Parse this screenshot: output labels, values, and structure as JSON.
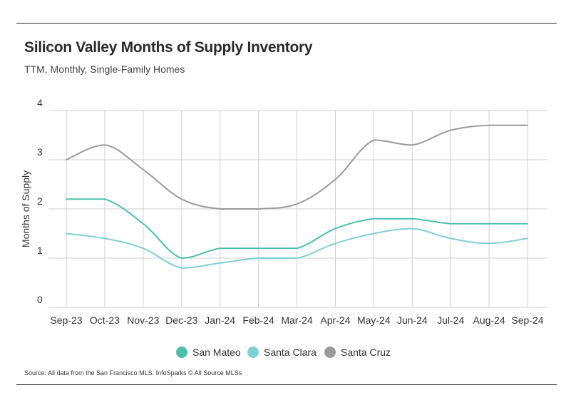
{
  "chart_data": {
    "type": "line",
    "title": "Silicon Valley Months of Supply Inventory",
    "subtitle": "TTM, Monthly, Single-Family Homes",
    "xlabel": "",
    "ylabel": "Months of Supply",
    "ylim": [
      0,
      4
    ],
    "yticks": [
      "0",
      "1",
      "2",
      "3",
      "4"
    ],
    "grid": true,
    "legend_position": "bottom-center",
    "categories": [
      "Sep-23",
      "Oct-23",
      "Nov-23",
      "Dec-23",
      "Jan-24",
      "Feb-24",
      "Mar-24",
      "Apr-24",
      "May-24",
      "Jun-24",
      "Jul-24",
      "Aug-24",
      "Sep-24"
    ],
    "series": [
      {
        "name": "San Mateo",
        "color": "#4dbfa8",
        "values": [
          2.2,
          2.2,
          1.7,
          1.0,
          1.2,
          1.2,
          1.2,
          1.6,
          1.8,
          1.8,
          1.7,
          1.7,
          1.7
        ]
      },
      {
        "name": "Santa Clara",
        "color": "#7fcfd4",
        "values": [
          1.5,
          1.4,
          1.2,
          0.8,
          0.9,
          1.0,
          1.0,
          1.3,
          1.5,
          1.6,
          1.4,
          1.3,
          1.4
        ]
      },
      {
        "name": "Santa Cruz",
        "color": "#9a9a9a",
        "values": [
          3.0,
          3.3,
          2.8,
          2.2,
          2.0,
          2.0,
          2.1,
          2.6,
          3.4,
          3.3,
          3.6,
          3.7,
          3.7
        ]
      }
    ]
  },
  "footer": {
    "source": "Source:  All data from the San Francisco MLS. InfoSparks © All Source MLSs"
  }
}
